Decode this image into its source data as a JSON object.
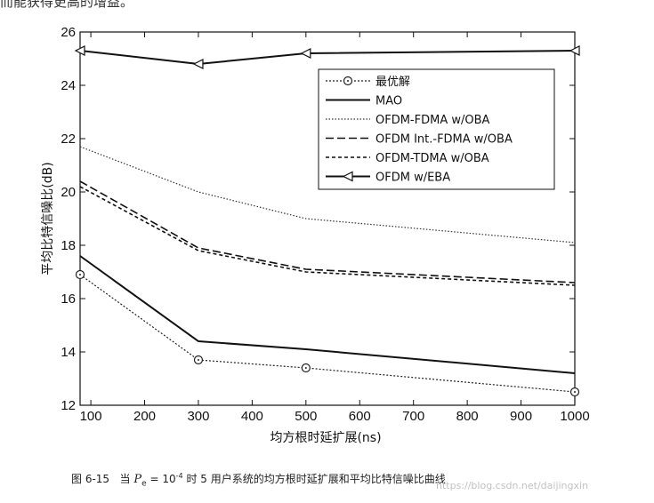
{
  "top_text": "而能获得更高的增益。",
  "caption": {
    "figure_label": "图 6-15",
    "lead": "当",
    "pe_symbol": "P",
    "pe_sub": "e",
    "eq": "= 10",
    "exp": "-4",
    "rest": "时 5 用户系统的均方根时延扩展和平均比特信噪比曲线"
  },
  "watermark": "https://blog.csdn.net/daijingxin",
  "chart_data": {
    "type": "line",
    "title": "",
    "xlabel": "均方根时延扩展(ns)",
    "ylabel": "平均比特信噪比(dB)",
    "xlim": [
      80,
      1000
    ],
    "ylim": [
      12,
      26
    ],
    "xticks": [
      100,
      200,
      300,
      400,
      500,
      600,
      700,
      800,
      900,
      1000
    ],
    "yticks": [
      12,
      14,
      16,
      18,
      20,
      22,
      24,
      26
    ],
    "grid": false,
    "legend_position": "top-right",
    "series": [
      {
        "name": "最优解",
        "x": [
          80,
          300,
          500,
          1000
        ],
        "y": [
          16.9,
          13.7,
          13.4,
          12.5
        ],
        "color": "#222222",
        "dash": "2,2",
        "width": 1.2,
        "marker": "circle"
      },
      {
        "name": "MAO",
        "x": [
          80,
          300,
          500,
          1000
        ],
        "y": [
          17.6,
          14.4,
          14.1,
          13.2
        ],
        "color": "#111111",
        "dash": "",
        "width": 2,
        "marker": ""
      },
      {
        "name": "OFDM-FDMA w/OBA",
        "x": [
          80,
          300,
          500,
          1000
        ],
        "y": [
          21.7,
          20.0,
          19.0,
          18.1
        ],
        "color": "#333333",
        "dash": "1.5,2",
        "width": 1.2,
        "marker": ""
      },
      {
        "name": "OFDM Int.-FDMA w/OBA",
        "x": [
          80,
          300,
          500,
          1000
        ],
        "y": [
          20.4,
          17.9,
          17.1,
          16.6
        ],
        "color": "#111111",
        "dash": "9,4",
        "width": 1.6,
        "marker": ""
      },
      {
        "name": "OFDM-TDMA w/OBA",
        "x": [
          80,
          300,
          500,
          1000
        ],
        "y": [
          20.2,
          17.8,
          17.0,
          16.5
        ],
        "color": "#111111",
        "dash": "4,3",
        "width": 1.6,
        "marker": ""
      },
      {
        "name": "OFDM w/EBA",
        "x": [
          80,
          300,
          500,
          1000
        ],
        "y": [
          25.3,
          24.8,
          25.2,
          25.3
        ],
        "color": "#111111",
        "dash": "",
        "width": 2,
        "marker": "triangle-left"
      }
    ]
  }
}
